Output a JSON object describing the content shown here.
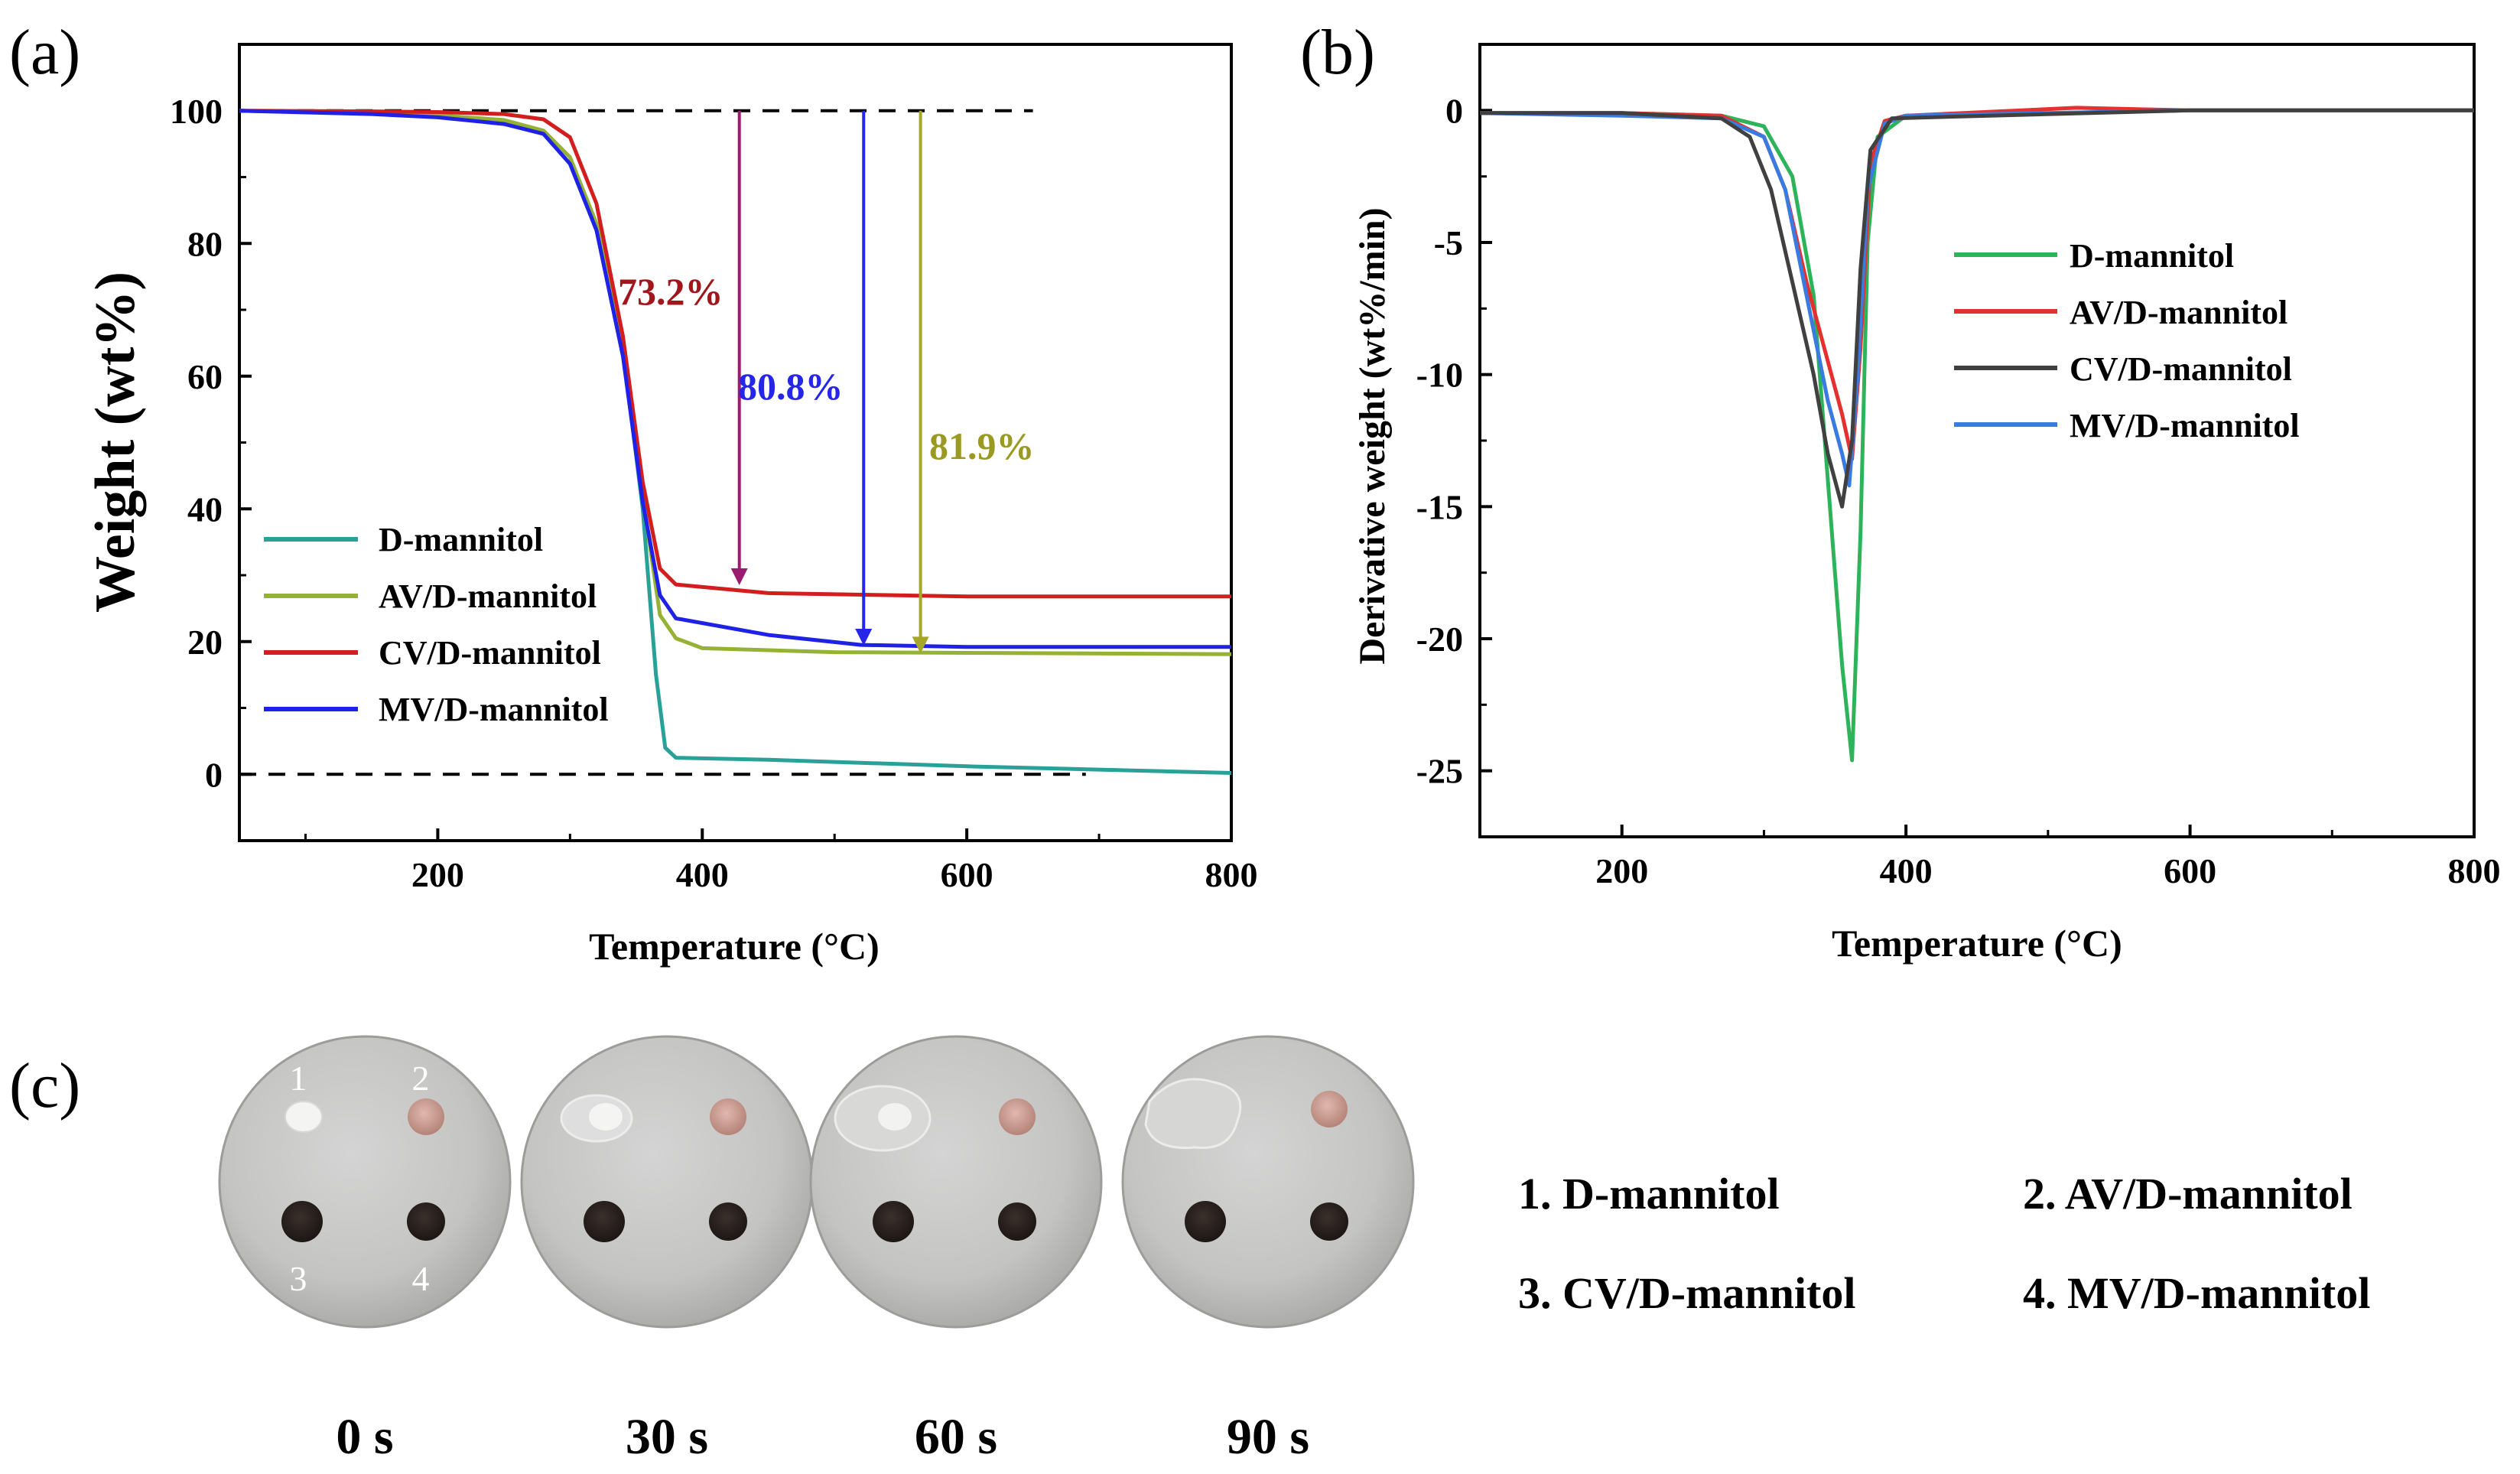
{
  "panels": {
    "a": "(a)",
    "b": "(b)",
    "c": "(c)"
  },
  "chart_data": [
    {
      "type": "line",
      "panel": "(a)",
      "xlabel": "Temperature (°C)",
      "ylabel": "Weight (wt%)",
      "xlim": [
        50,
        800
      ],
      "ylim": [
        -10,
        110
      ],
      "xticks": [
        200,
        400,
        600,
        800
      ],
      "yticks": [
        0,
        20,
        40,
        60,
        80,
        100
      ],
      "grid": false,
      "legend_position": "lower-left",
      "reference_lines": [
        {
          "y": 100,
          "x_range": [
            50,
            650
          ],
          "style": "dashed"
        },
        {
          "y": 0,
          "x_range": [
            50,
            690
          ],
          "style": "dashed"
        }
      ],
      "series": [
        {
          "name": "D-mannitol",
          "color": "#2aa198",
          "points": [
            [
              50,
              100
            ],
            [
              150,
              99.6
            ],
            [
              200,
              99.2
            ],
            [
              250,
              98.4
            ],
            [
              280,
              96.5
            ],
            [
              300,
              92
            ],
            [
              320,
              82
            ],
            [
              340,
              64
            ],
            [
              355,
              40
            ],
            [
              365,
              15
            ],
            [
              372,
              4
            ],
            [
              380,
              2.5
            ],
            [
              450,
              2.2
            ],
            [
              600,
              1.2
            ],
            [
              800,
              0.2
            ]
          ]
        },
        {
          "name": "AV/D-mannitol",
          "color": "#95b234",
          "points": [
            [
              50,
              100
            ],
            [
              150,
              99.6
            ],
            [
              200,
              99.3
            ],
            [
              250,
              98.6
            ],
            [
              280,
              97
            ],
            [
              300,
              93
            ],
            [
              320,
              83
            ],
            [
              340,
              64
            ],
            [
              355,
              42
            ],
            [
              368,
              24
            ],
            [
              380,
              20.5
            ],
            [
              400,
              19
            ],
            [
              500,
              18.4
            ],
            [
              800,
              18.1
            ]
          ]
        },
        {
          "name": "CV/D-mannitol",
          "color": "#d21e1e",
          "points": [
            [
              50,
              100
            ],
            [
              150,
              99.9
            ],
            [
              200,
              99.8
            ],
            [
              250,
              99.5
            ],
            [
              280,
              98.7
            ],
            [
              300,
              96
            ],
            [
              320,
              86
            ],
            [
              340,
              66
            ],
            [
              355,
              44
            ],
            [
              368,
              31
            ],
            [
              380,
              28.6
            ],
            [
              450,
              27.3
            ],
            [
              600,
              26.8
            ],
            [
              800,
              26.8
            ]
          ]
        },
        {
          "name": "MV/D-mannitol",
          "color": "#1f22e6",
          "points": [
            [
              50,
              100
            ],
            [
              150,
              99.5
            ],
            [
              200,
              99
            ],
            [
              250,
              98
            ],
            [
              280,
              96.5
            ],
            [
              300,
              92
            ],
            [
              320,
              82
            ],
            [
              340,
              63
            ],
            [
              355,
              41
            ],
            [
              368,
              27
            ],
            [
              380,
              23.5
            ],
            [
              450,
              21
            ],
            [
              520,
              19.5
            ],
            [
              600,
              19.2
            ],
            [
              800,
              19.2
            ]
          ]
        }
      ],
      "annotations": [
        {
          "text": "73.2%",
          "color": "#a0161b",
          "arrow_x": 428,
          "arrow_from": 100,
          "arrow_to": 28.5,
          "arrow_color": "#9b1b6e"
        },
        {
          "text": "80.8%",
          "color": "#2626e8",
          "arrow_x": 522,
          "arrow_from": 100,
          "arrow_to": 19.4,
          "arrow_color": "#2626e8"
        },
        {
          "text": "81.9%",
          "color": "#9a9a22",
          "arrow_x": 565,
          "arrow_from": 100,
          "arrow_to": 18.2,
          "arrow_color": "#a6a62a"
        }
      ]
    },
    {
      "type": "line",
      "panel": "(b)",
      "xlabel": "Temperature (°C)",
      "ylabel": "Derivative weight (wt%/min)",
      "xlim": [
        100,
        800
      ],
      "ylim": [
        -27.5,
        2.5
      ],
      "xticks": [
        200,
        400,
        600,
        800
      ],
      "yticks": [
        0,
        -5,
        -10,
        -15,
        -20,
        -25
      ],
      "grid": false,
      "legend_position": "center-right",
      "series": [
        {
          "name": "D-mannitol",
          "color": "#2db359",
          "points": [
            [
              100,
              -0.1
            ],
            [
              200,
              -0.1
            ],
            [
              270,
              -0.2
            ],
            [
              300,
              -0.6
            ],
            [
              320,
              -2.5
            ],
            [
              335,
              -7
            ],
            [
              345,
              -14
            ],
            [
              355,
              -21
            ],
            [
              362,
              -24.6
            ],
            [
              368,
              -16
            ],
            [
              373,
              -5
            ],
            [
              380,
              -1
            ],
            [
              400,
              -0.2
            ],
            [
              600,
              0
            ],
            [
              800,
              0
            ]
          ]
        },
        {
          "name": "AV/D-mannitol",
          "color": "#e53030",
          "points": [
            [
              100,
              -0.1
            ],
            [
              200,
              -0.1
            ],
            [
              270,
              -0.2
            ],
            [
              300,
              -1
            ],
            [
              315,
              -3
            ],
            [
              330,
              -6.5
            ],
            [
              345,
              -9.5
            ],
            [
              355,
              -11.5
            ],
            [
              362,
              -13.2
            ],
            [
              368,
              -9
            ],
            [
              375,
              -2
            ],
            [
              385,
              -0.4
            ],
            [
              400,
              -0.2
            ],
            [
              520,
              0.1
            ],
            [
              600,
              0
            ],
            [
              800,
              0
            ]
          ]
        },
        {
          "name": "CV/D-mannitol",
          "color": "#404040",
          "points": [
            [
              100,
              -0.1
            ],
            [
              200,
              -0.1
            ],
            [
              270,
              -0.3
            ],
            [
              290,
              -1
            ],
            [
              305,
              -3
            ],
            [
              320,
              -6.5
            ],
            [
              335,
              -10
            ],
            [
              345,
              -13
            ],
            [
              355,
              -15
            ],
            [
              362,
              -12.5
            ],
            [
              368,
              -6
            ],
            [
              375,
              -1.5
            ],
            [
              390,
              -0.3
            ],
            [
              600,
              0
            ],
            [
              800,
              0
            ]
          ]
        },
        {
          "name": "MV/D-mannitol",
          "color": "#3a7be0",
          "points": [
            [
              100,
              -0.1
            ],
            [
              200,
              -0.2
            ],
            [
              270,
              -0.3
            ],
            [
              300,
              -1
            ],
            [
              315,
              -3
            ],
            [
              330,
              -7
            ],
            [
              345,
              -11
            ],
            [
              355,
              -13
            ],
            [
              360,
              -14.2
            ],
            [
              366,
              -10
            ],
            [
              373,
              -3
            ],
            [
              385,
              -0.5
            ],
            [
              400,
              -0.2
            ],
            [
              600,
              0
            ],
            [
              800,
              0
            ]
          ]
        }
      ]
    }
  ],
  "panel_c": {
    "times": [
      "0 s",
      "30 s",
      "60 s",
      "90 s"
    ],
    "dish_numbers": [
      "1",
      "2",
      "3",
      "4"
    ],
    "legend": [
      "1. D-mannitol",
      "2. AV/D-mannitol",
      "3. CV/D-mannitol",
      "4. MV/D-mannitol"
    ]
  }
}
